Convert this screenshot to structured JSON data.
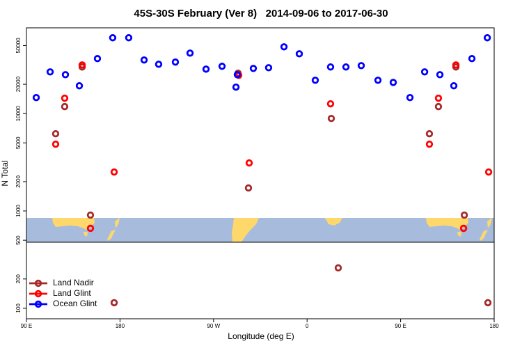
{
  "chart_data": {
    "type": "scatter",
    "title": "45S-30S February (Ver 8)   2014-09-06 to 2017-06-30",
    "x_label": "Longitude (deg E)",
    "y_label": "N Total",
    "xlim": [
      90,
      540
    ],
    "xticks": [
      {
        "value": 90,
        "label": "90 E"
      },
      {
        "value": 180,
        "label": "180"
      },
      {
        "value": 270,
        "label": "90 W"
      },
      {
        "value": 360,
        "label": "0"
      },
      {
        "value": 450,
        "label": "90 E"
      },
      {
        "value": 540,
        "label": "180"
      }
    ],
    "ylim": [
      78,
      76000
    ],
    "log_y": true,
    "yticks": [
      100,
      200,
      500,
      1000,
      2000,
      5000,
      10000,
      20000,
      50000
    ],
    "legend": "lower left",
    "series": [
      {
        "name": "Land Nadir",
        "color": "#a52a2a",
        "x": [
          118.1,
          126.8,
          143.6,
          151.6,
          174.4,
          293.6,
          303.6,
          383.3,
          390.0,
          477.7,
          486.4,
          503.2,
          511.3,
          534.0
        ],
        "values": [
          6200,
          11800,
          30100,
          906,
          114,
          26000,
          1720,
          8910,
          260,
          6200,
          11800,
          30100,
          906,
          114
        ]
      },
      {
        "name": "Land Glint",
        "color": "#ff0000",
        "x": [
          118.1,
          126.8,
          143.6,
          151.6,
          174.4,
          294.2,
          304.3,
          382.6,
          477.7,
          486.4,
          503.2,
          510.6,
          534.7
        ],
        "values": [
          4850,
          14400,
          31600,
          663,
          2510,
          24700,
          3110,
          12600,
          4850,
          14400,
          31600,
          663,
          2510
        ]
      },
      {
        "name": "Ocean Glint",
        "color": "#0000ff",
        "x": [
          99.4,
          112.8,
          127.5,
          140.9,
          158.3,
          173.0,
          188.4,
          203.2,
          217.2,
          233.3,
          247.4,
          262.8,
          278.2,
          292.9,
          291.6,
          308.3,
          323.0,
          337.8,
          352.5,
          367.9,
          382.6,
          397.4,
          412.1,
          428.2,
          442.9,
          459.0,
          473.1,
          487.8,
          501.2,
          518.6,
          533.4
        ],
        "values": [
          14600,
          26800,
          25100,
          19300,
          36700,
          60100,
          60100,
          35500,
          32100,
          33800,
          41800,
          28600,
          30600,
          25100,
          18700,
          29100,
          29600,
          48500,
          41100,
          22000,
          30100,
          30100,
          31100,
          22000,
          20900,
          14600,
          26800,
          25100,
          19300,
          36700,
          60100
        ]
      }
    ]
  }
}
